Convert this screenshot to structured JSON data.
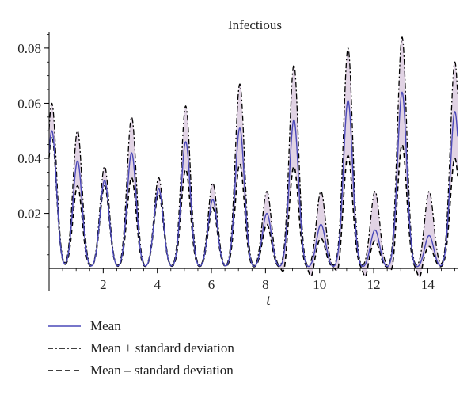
{
  "chart_data": {
    "type": "line",
    "title": "Infectious",
    "xlabel": "t",
    "ylabel": "",
    "xlim": [
      0,
      15.1
    ],
    "ylim": [
      -0.008,
      0.086
    ],
    "x_ticks": [
      2,
      4,
      6,
      8,
      10,
      12,
      14
    ],
    "x_tick_labels": [
      "2",
      "4",
      "6",
      "8",
      "10",
      "12",
      "14"
    ],
    "y_ticks": [
      0.02,
      0.04,
      0.06,
      0.08
    ],
    "y_tick_labels": [
      "0.02",
      "0.04",
      "0.06",
      "0.08"
    ],
    "grid": false,
    "legend_position": "bottom-left",
    "colors": {
      "mean": "#4a48b8",
      "band_fill": "#dccbdf",
      "bounds": "#000000"
    },
    "peak_times": [
      0.1,
      1.05,
      2.05,
      3.05,
      4.05,
      5.05,
      6.05,
      7.05,
      8.05,
      9.05,
      10.05,
      11.05,
      12.05,
      13.05,
      14.05,
      15.0
    ],
    "series": [
      {
        "name": "Mean",
        "style": "solid",
        "peak_values": [
          0.05,
          0.039,
          0.032,
          0.042,
          0.029,
          0.046,
          0.025,
          0.051,
          0.02,
          0.054,
          0.016,
          0.061,
          0.014,
          0.064,
          0.012,
          0.057
        ]
      },
      {
        "name": "Mean + standard deviation",
        "style": "dash-dot",
        "peak_values": [
          0.06,
          0.05,
          0.037,
          0.055,
          0.033,
          0.059,
          0.031,
          0.067,
          0.028,
          0.074,
          0.028,
          0.08,
          0.028,
          0.084,
          0.028,
          0.075
        ]
      },
      {
        "name": "Mean – standard deviation",
        "style": "dashed",
        "peak_values": [
          0.048,
          0.03,
          0.03,
          0.033,
          0.027,
          0.036,
          0.022,
          0.038,
          0.016,
          0.037,
          0.011,
          0.041,
          0.01,
          0.045,
          0.008,
          0.04
        ],
        "trough_min": -0.004
      }
    ]
  }
}
